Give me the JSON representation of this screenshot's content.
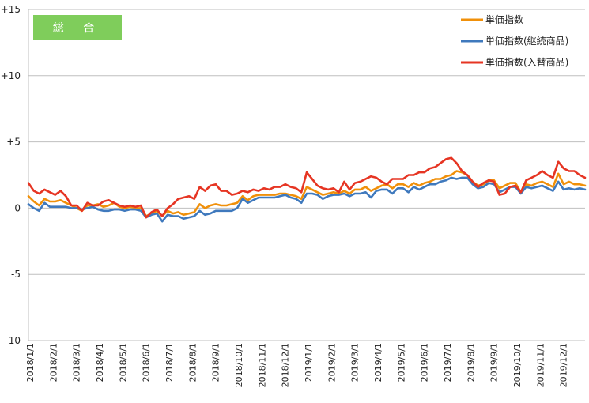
{
  "chart_data": {
    "type": "line",
    "title": "",
    "xlabel": "",
    "ylabel": "",
    "badge": "総 合",
    "ylim": [
      -10,
      15
    ],
    "y_ticks": [
      {
        "value": 15,
        "label": "+15"
      },
      {
        "value": 10,
        "label": "+10"
      },
      {
        "value": 5,
        "label": "+5"
      },
      {
        "value": 0,
        "label": "0"
      },
      {
        "value": -5,
        "label": "-5"
      },
      {
        "value": -10,
        "label": "-10"
      }
    ],
    "x_tick_labels": [
      "2018/1/1",
      "2018/2/1",
      "2018/3/1",
      "2018/4/1",
      "2018/5/1",
      "2018/6/1",
      "2018/7/1",
      "2018/8/1",
      "2018/9/1",
      "2018/10/1",
      "2018/11/1",
      "2018/12/1",
      "2019/1/1",
      "2019/2/1",
      "2019/3/1",
      "2019/4/1",
      "2019/5/1",
      "2019/6/1",
      "2019/7/1",
      "2019/8/1",
      "2019/9/1",
      "2019/10/1",
      "2019/11/1",
      "2019/12/1"
    ],
    "grid": "horizontal",
    "legend_position": "top-right",
    "series": [
      {
        "name": "単価指数",
        "color": "#f0900a",
        "values": [
          0.9,
          0.5,
          0.2,
          0.7,
          0.5,
          0.5,
          0.6,
          0.4,
          0.2,
          0.0,
          -0.2,
          0.2,
          0.2,
          0.3,
          0.1,
          0.2,
          0.4,
          0.1,
          0.0,
          0.1,
          0.0,
          0.0,
          -0.6,
          -0.4,
          -0.2,
          -0.6,
          -0.2,
          -0.4,
          -0.3,
          -0.5,
          -0.4,
          -0.3,
          0.3,
          0.0,
          0.2,
          0.3,
          0.2,
          0.2,
          0.3,
          0.4,
          0.9,
          0.6,
          0.9,
          1.0,
          1.0,
          1.0,
          1.0,
          1.1,
          1.1,
          1.0,
          0.9,
          0.7,
          1.6,
          1.4,
          1.2,
          1.0,
          1.1,
          1.2,
          1.1,
          1.3,
          1.1,
          1.4,
          1.4,
          1.6,
          1.3,
          1.5,
          1.7,
          1.8,
          1.5,
          1.8,
          1.8,
          1.6,
          1.9,
          1.7,
          1.9,
          2.0,
          2.2,
          2.2,
          2.4,
          2.5,
          2.8,
          2.7,
          2.5,
          2.0,
          1.7,
          1.8,
          2.1,
          2.1,
          1.5,
          1.7,
          1.9,
          1.9,
          1.2,
          1.8,
          1.7,
          1.9,
          2.0,
          1.8,
          1.6,
          2.6,
          1.8,
          2.0,
          1.8,
          1.8,
          1.7
        ]
      },
      {
        "name": "単価指数(継続商品)",
        "color": "#3f79bd",
        "values": [
          0.3,
          0.0,
          -0.2,
          0.4,
          0.1,
          0.1,
          0.1,
          0.1,
          0.0,
          0.0,
          -0.1,
          0.0,
          0.1,
          -0.1,
          -0.2,
          -0.2,
          -0.1,
          -0.1,
          -0.2,
          -0.1,
          -0.1,
          -0.2,
          -0.7,
          -0.5,
          -0.4,
          -1.0,
          -0.5,
          -0.6,
          -0.6,
          -0.8,
          -0.7,
          -0.6,
          -0.2,
          -0.5,
          -0.4,
          -0.2,
          -0.2,
          -0.2,
          -0.2,
          0.0,
          0.7,
          0.4,
          0.6,
          0.8,
          0.8,
          0.8,
          0.8,
          0.9,
          1.0,
          0.8,
          0.7,
          0.4,
          1.1,
          1.1,
          1.0,
          0.7,
          0.9,
          1.0,
          1.0,
          1.1,
          0.9,
          1.1,
          1.1,
          1.2,
          0.8,
          1.3,
          1.4,
          1.4,
          1.1,
          1.5,
          1.5,
          1.2,
          1.6,
          1.4,
          1.6,
          1.8,
          1.8,
          2.0,
          2.1,
          2.3,
          2.2,
          2.3,
          2.3,
          1.8,
          1.5,
          1.6,
          1.9,
          1.8,
          1.2,
          1.4,
          1.6,
          1.6,
          1.1,
          1.6,
          1.5,
          1.6,
          1.7,
          1.5,
          1.3,
          2.0,
          1.4,
          1.5,
          1.4,
          1.5,
          1.4
        ]
      },
      {
        "name": "単価指数(入替商品)",
        "color": "#e63523",
        "values": [
          1.9,
          1.3,
          1.1,
          1.4,
          1.2,
          1.0,
          1.3,
          0.9,
          0.2,
          0.2,
          -0.2,
          0.4,
          0.2,
          0.2,
          0.5,
          0.6,
          0.4,
          0.2,
          0.1,
          0.2,
          0.1,
          0.2,
          -0.7,
          -0.3,
          -0.1,
          -0.6,
          0.0,
          0.3,
          0.7,
          0.8,
          0.9,
          0.7,
          1.6,
          1.3,
          1.7,
          1.8,
          1.3,
          1.3,
          1.0,
          1.1,
          1.3,
          1.2,
          1.4,
          1.3,
          1.5,
          1.4,
          1.6,
          1.6,
          1.8,
          1.6,
          1.5,
          1.2,
          2.7,
          2.2,
          1.7,
          1.5,
          1.4,
          1.5,
          1.2,
          2.0,
          1.4,
          1.9,
          2.0,
          2.2,
          2.4,
          2.3,
          2.0,
          1.8,
          2.2,
          2.2,
          2.2,
          2.5,
          2.5,
          2.7,
          2.7,
          3.0,
          3.1,
          3.4,
          3.7,
          3.8,
          3.4,
          2.8,
          2.5,
          2.0,
          1.6,
          1.9,
          2.1,
          2.0,
          1.0,
          1.1,
          1.6,
          1.7,
          1.2,
          2.1,
          2.3,
          2.5,
          2.8,
          2.5,
          2.3,
          3.5,
          3.0,
          2.8,
          2.8,
          2.5,
          2.3
        ]
      }
    ]
  }
}
